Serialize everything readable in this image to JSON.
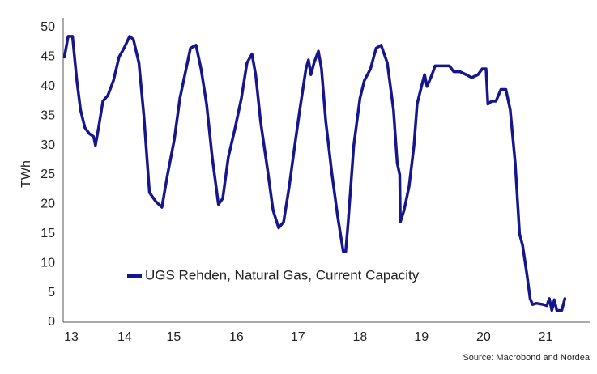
{
  "chart_data": {
    "type": "line",
    "ylabel": "TWh",
    "source": "Source: Macrobond and Nordea",
    "xlim": [
      2013.71,
      2022.19
    ],
    "ylim": [
      0,
      50
    ],
    "yticks": [
      0,
      5,
      10,
      15,
      20,
      25,
      30,
      35,
      40,
      45,
      50
    ],
    "xticks": [
      {
        "value": 2013.84,
        "label": "13"
      },
      {
        "value": 2014.7,
        "label": "14"
      },
      {
        "value": 2015.49,
        "label": "15"
      },
      {
        "value": 2016.5,
        "label": "16"
      },
      {
        "value": 2017.49,
        "label": "17"
      },
      {
        "value": 2018.49,
        "label": "18"
      },
      {
        "value": 2019.48,
        "label": "19"
      },
      {
        "value": 2020.48,
        "label": "20"
      },
      {
        "value": 2021.48,
        "label": "21"
      }
    ],
    "legend": "lower left",
    "series": [
      {
        "name": "UGS Rehden, Natural Gas, Current Capacity",
        "color": "#15168c",
        "x": [
          2013.73,
          2013.79,
          2013.86,
          2013.93,
          2013.99,
          2014.06,
          2014.13,
          2014.2,
          2014.23,
          2014.28,
          2014.35,
          2014.43,
          2014.52,
          2014.61,
          2014.69,
          2014.78,
          2014.84,
          2014.93,
          2015.01,
          2015.1,
          2015.2,
          2015.3,
          2015.39,
          2015.5,
          2015.59,
          2015.67,
          2015.76,
          2015.85,
          2015.93,
          2016.02,
          2016.11,
          2016.21,
          2016.28,
          2016.37,
          2016.48,
          2016.58,
          2016.67,
          2016.75,
          2016.81,
          2016.89,
          2017.0,
          2017.09,
          2017.18,
          2017.26,
          2017.35,
          2017.44,
          2017.52,
          2017.62,
          2017.66,
          2017.7,
          2017.75,
          2017.82,
          2017.87,
          2017.94,
          2018.04,
          2018.13,
          2018.22,
          2018.26,
          2018.3,
          2018.39,
          2018.49,
          2018.56,
          2018.66,
          2018.75,
          2018.83,
          2018.93,
          2019.03,
          2019.09,
          2019.13,
          2019.14,
          2019.2,
          2019.28,
          2019.36,
          2019.41,
          2019.48,
          2019.53,
          2019.57,
          2019.65,
          2019.7,
          2019.8,
          2019.93,
          2020.0,
          2020.1,
          2020.2,
          2020.29,
          2020.39,
          2020.46,
          2020.52,
          2020.55,
          2020.61,
          2020.68,
          2020.76,
          2020.84,
          2020.91,
          2020.99,
          2021.06,
          2021.11,
          2021.18,
          2021.23,
          2021.27,
          2021.33,
          2021.44,
          2021.5,
          2021.54,
          2021.58,
          2021.62,
          2021.66,
          2021.74,
          2021.79
        ],
        "values": [
          45,
          48.5,
          48.5,
          41,
          36,
          33,
          32,
          31.5,
          30,
          33,
          37.5,
          38.5,
          41,
          45,
          46.5,
          48.5,
          48,
          44,
          35,
          22,
          20.5,
          19.5,
          25,
          31,
          38,
          42,
          46.5,
          47,
          43,
          37,
          28,
          20,
          21,
          28,
          33,
          38,
          44,
          45.5,
          42,
          34,
          26,
          19,
          16,
          17,
          23,
          30,
          36,
          43,
          44.5,
          42,
          44,
          46,
          43,
          34,
          25,
          18,
          12,
          12,
          17,
          30,
          38,
          41,
          43,
          46.5,
          47,
          44,
          36,
          27,
          25,
          17,
          19,
          23,
          30,
          37,
          40,
          42,
          40,
          42,
          43.5,
          43.5,
          43.5,
          42.5,
          42.5,
          42,
          41.5,
          42,
          43,
          43,
          37,
          37.5,
          37.5,
          39.5,
          39.5,
          36,
          27,
          15,
          13,
          8,
          4,
          3,
          3.2,
          3,
          2.8,
          4,
          2,
          3.8,
          2,
          2,
          4
        ]
      }
    ]
  }
}
